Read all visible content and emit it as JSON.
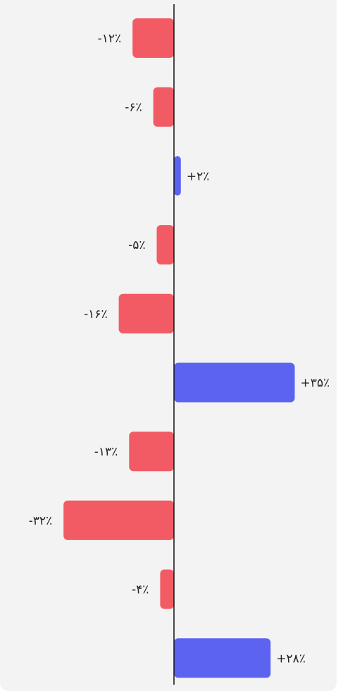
{
  "chart_data": {
    "type": "bar",
    "orientation": "horizontal",
    "values": [
      -12,
      -6,
      2,
      -5,
      -16,
      35,
      -13,
      -32,
      -4,
      28
    ],
    "value_labels": [
      "-۱۲٪",
      "-۶٪",
      "+۲٪",
      "-۵٪",
      "-۱۶٪",
      "+۳۵٪",
      "-۱۳٪",
      "-۳۲٪",
      "-۴٪",
      "+۲۸٪"
    ],
    "unit": "%",
    "grid": false,
    "colors": {
      "positive": "#5b63f0",
      "negative": "#f25a64",
      "axis": "#111111"
    }
  }
}
